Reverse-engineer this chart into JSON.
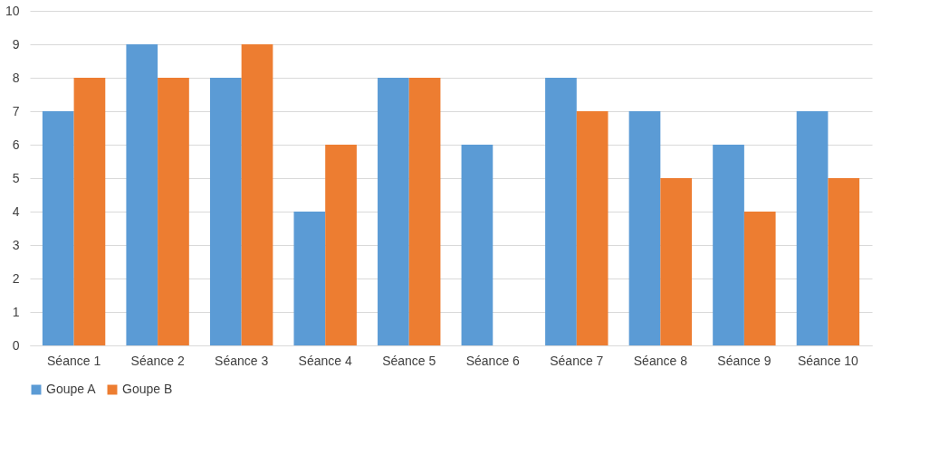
{
  "chart_data": {
    "type": "bar",
    "categories": [
      "Séance 1",
      "Séance 2",
      "Séance 3",
      "Séance 4",
      "Séance 5",
      "Séance 6",
      "Séance 7",
      "Séance 8",
      "Séance 9",
      "Séance 10"
    ],
    "series": [
      {
        "name": "Goupe A",
        "color": "#5b9bd5",
        "values": [
          7,
          9,
          8,
          4,
          8,
          6,
          8,
          7,
          6,
          7
        ]
      },
      {
        "name": "Goupe B",
        "color": "#ed7d31",
        "values": [
          8,
          8,
          9,
          6,
          8,
          0,
          7,
          5,
          4,
          5
        ]
      }
    ],
    "ylim": [
      0,
      10
    ],
    "yticks": [
      0,
      1,
      2,
      3,
      4,
      5,
      6,
      7,
      8,
      9,
      10
    ],
    "grid": "y",
    "legend": "bottom"
  }
}
